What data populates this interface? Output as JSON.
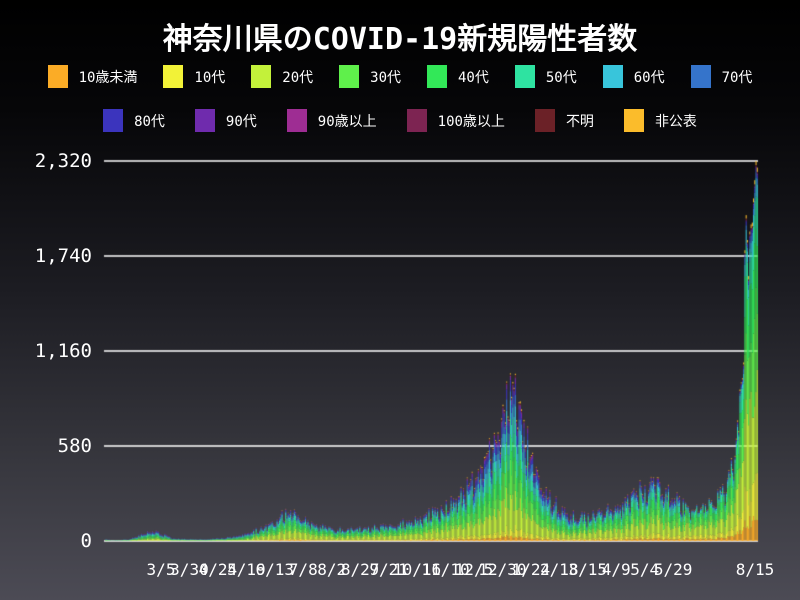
{
  "title": "神奈川県のCOVID-19新規陽性者数",
  "legend": {
    "rows": [
      [
        {
          "label": "10歳未満",
          "color": "#FBAC26"
        },
        {
          "label": "10代",
          "color": "#F2F237"
        },
        {
          "label": "20代",
          "color": "#C3F13A"
        },
        {
          "label": "30代",
          "color": "#5FF04B"
        },
        {
          "label": "40代",
          "color": "#32E858"
        },
        {
          "label": "50代",
          "color": "#2EE3A1"
        },
        {
          "label": "60代",
          "color": "#38C5DB"
        },
        {
          "label": "70代",
          "color": "#3574CB"
        }
      ],
      [
        {
          "label": "80代",
          "color": "#3B34BD"
        },
        {
          "label": "90代",
          "color": "#6F2BAD"
        },
        {
          "label": "90歳以上",
          "color": "#9E2D93"
        },
        {
          "label": "100歳以上",
          "color": "#7D2452"
        },
        {
          "label": "不明",
          "color": "#6B2127"
        },
        {
          "label": "非公表",
          "color": "#FBBC2B"
        }
      ]
    ]
  },
  "y_axis": {
    "tick_labels": [
      "2,320",
      "1,740",
      "1,160",
      "580",
      "0"
    ],
    "tick_values": [
      2320,
      1740,
      1160,
      580,
      0
    ]
  },
  "x_axis": {
    "tick_labels": [
      "3/5",
      "3/30",
      "4/24",
      "5/19",
      "6/13",
      "7/8",
      "8/2",
      "8/27",
      "9/21",
      "10/16",
      "11/10",
      "12/5",
      "12/30",
      "1/24",
      "2/18",
      "3/15",
      "4/9",
      "5/4",
      "5/29"
    ],
    "last_label": "8/15"
  },
  "chart_data": {
    "type": "bar",
    "stacked": true,
    "title": "神奈川県のCOVID-19新規陽性者数",
    "x_unit": "day",
    "n_days": 529,
    "start_label": "3/5",
    "end_label": "8/15",
    "ylim": [
      0,
      2320
    ],
    "grid": true,
    "grid_values": [
      0,
      580,
      1160,
      1740,
      2320
    ],
    "series_names": [
      "10歳未満",
      "10代",
      "20代",
      "30代",
      "40代",
      "50代",
      "60代",
      "70代",
      "80代",
      "90代",
      "90歳以上",
      "100歳以上",
      "不明",
      "非公表"
    ],
    "series_colors": [
      "#FBAC26",
      "#F2F237",
      "#C3F13A",
      "#5FF04B",
      "#32E858",
      "#2EE3A1",
      "#38C5DB",
      "#3574CB",
      "#3B34BD",
      "#6F2BAD",
      "#9E2D93",
      "#7D2452",
      "#6B2127",
      "#FBBC2B"
    ],
    "total_anchors": [
      [
        0,
        10
      ],
      [
        6,
        4
      ],
      [
        12,
        6
      ],
      [
        20,
        12
      ],
      [
        30,
        42
      ],
      [
        38,
        60
      ],
      [
        45,
        46
      ],
      [
        55,
        18
      ],
      [
        65,
        12
      ],
      [
        80,
        10
      ],
      [
        95,
        18
      ],
      [
        105,
        28
      ],
      [
        115,
        46
      ],
      [
        125,
        76
      ],
      [
        135,
        115
      ],
      [
        145,
        165
      ],
      [
        150,
        205
      ],
      [
        158,
        135
      ],
      [
        170,
        95
      ],
      [
        185,
        75
      ],
      [
        200,
        72
      ],
      [
        215,
        82
      ],
      [
        230,
        95
      ],
      [
        245,
        120
      ],
      [
        258,
        150
      ],
      [
        270,
        195
      ],
      [
        282,
        240
      ],
      [
        292,
        310
      ],
      [
        300,
        390
      ],
      [
        308,
        480
      ],
      [
        315,
        610
      ],
      [
        322,
        800
      ],
      [
        327,
        900
      ],
      [
        331,
        965
      ],
      [
        335,
        840
      ],
      [
        340,
        650
      ],
      [
        346,
        480
      ],
      [
        352,
        360
      ],
      [
        360,
        260
      ],
      [
        368,
        200
      ],
      [
        378,
        155
      ],
      [
        388,
        145
      ],
      [
        398,
        160
      ],
      [
        408,
        190
      ],
      [
        418,
        225
      ],
      [
        428,
        280
      ],
      [
        436,
        320
      ],
      [
        443,
        345
      ],
      [
        450,
        330
      ],
      [
        459,
        275
      ],
      [
        467,
        225
      ],
      [
        474,
        200
      ],
      [
        481,
        195
      ],
      [
        488,
        210
      ],
      [
        495,
        250
      ],
      [
        501,
        310
      ],
      [
        506,
        420
      ],
      [
        509,
        520
      ],
      [
        511,
        620
      ],
      [
        513,
        780
      ],
      [
        515,
        1050
      ],
      [
        516,
        1350
      ],
      [
        517,
        1000
      ],
      [
        518,
        1850
      ],
      [
        519,
        2050
      ],
      [
        520,
        1900
      ],
      [
        521,
        1700
      ],
      [
        522,
        1800
      ],
      [
        523,
        2000
      ],
      [
        524,
        1900
      ],
      [
        525,
        2200
      ],
      [
        526,
        2100
      ],
      [
        527,
        2320
      ],
      [
        528,
        2280
      ]
    ],
    "weekly_pattern": [
      1.0,
      1.05,
      0.92,
      1.04,
      0.9,
      0.8,
      1.03
    ],
    "age_share_eras": [
      {
        "from_day": 0,
        "shares": [
          0.02,
          0.04,
          0.18,
          0.15,
          0.15,
          0.14,
          0.1,
          0.09,
          0.07,
          0.04,
          0.01,
          0.002,
          0.008,
          0.01
        ]
      },
      {
        "from_day": 120,
        "shares": [
          0.04,
          0.06,
          0.26,
          0.18,
          0.15,
          0.12,
          0.07,
          0.05,
          0.04,
          0.02,
          0.005,
          0.001,
          0.004,
          0.01
        ]
      },
      {
        "from_day": 290,
        "shares": [
          0.03,
          0.05,
          0.2,
          0.16,
          0.14,
          0.13,
          0.09,
          0.08,
          0.06,
          0.03,
          0.008,
          0.002,
          0.01,
          0.01
        ]
      },
      {
        "from_day": 380,
        "shares": [
          0.04,
          0.07,
          0.24,
          0.17,
          0.16,
          0.13,
          0.07,
          0.05,
          0.04,
          0.02,
          0.005,
          0.001,
          0.004,
          0.01
        ]
      },
      {
        "from_day": 470,
        "shares": [
          0.06,
          0.1,
          0.27,
          0.2,
          0.17,
          0.11,
          0.04,
          0.02,
          0.01,
          0.004,
          0.001,
          0.001,
          0.004,
          0.01
        ]
      }
    ]
  },
  "colors": {
    "text": "#ffffff",
    "gridline": "#ffffff",
    "background_top": "#000000",
    "background_bottom": "#4c4b55"
  }
}
